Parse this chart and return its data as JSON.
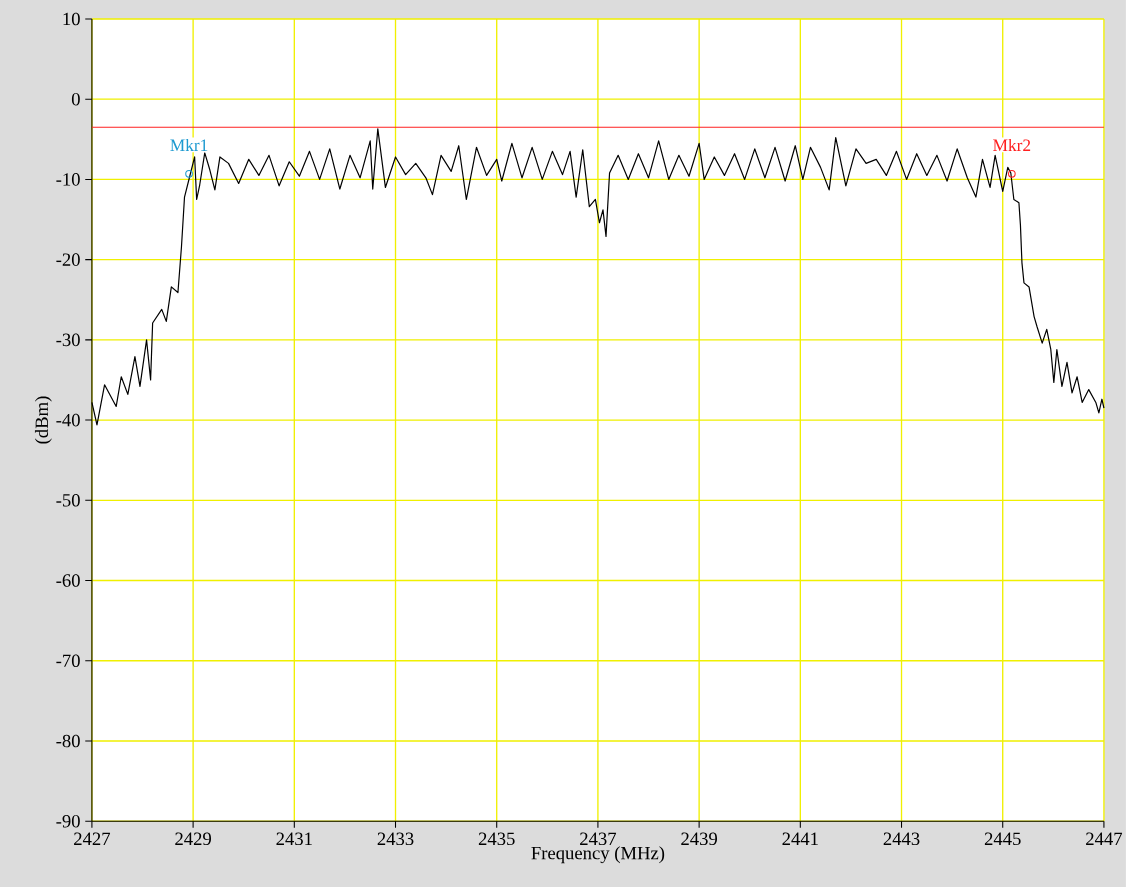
{
  "chart_data": {
    "type": "line",
    "xlabel": "Frequency (MHz)",
    "ylabel": "(dBm)",
    "xlim": [
      2427,
      2447
    ],
    "ylim": [
      -90,
      10
    ],
    "xticks": [
      2427,
      2429,
      2431,
      2433,
      2435,
      2437,
      2439,
      2441,
      2443,
      2445,
      2447
    ],
    "yticks": [
      -90,
      -80,
      -70,
      -60,
      -50,
      -40,
      -30,
      -20,
      -10,
      0,
      10
    ],
    "grid": true,
    "ref_lines": [
      {
        "axis": "y",
        "value": -3.5,
        "color": "#ff2020"
      }
    ],
    "series": [
      {
        "color": "#000000",
        "x": [
          2427.0,
          2427.1,
          2427.25,
          2427.48,
          2427.58,
          2427.71,
          2427.85,
          2427.95,
          2428.08,
          2428.16,
          2428.2,
          2428.38,
          2428.47,
          2428.57,
          2428.7,
          2428.77,
          2428.83,
          2428.95,
          2429.03,
          2429.07,
          2429.13,
          2429.23,
          2429.33,
          2429.43,
          2429.53,
          2429.7,
          2429.9,
          2430.1,
          2430.3,
          2430.5,
          2430.7,
          2430.9,
          2431.1,
          2431.3,
          2431.5,
          2431.7,
          2431.9,
          2432.1,
          2432.3,
          2432.5,
          2432.55,
          2432.65,
          2432.8,
          2433.0,
          2433.2,
          2433.4,
          2433.6,
          2433.73,
          2433.9,
          2434.1,
          2434.25,
          2434.4,
          2434.6,
          2434.8,
          2435.0,
          2435.1,
          2435.3,
          2435.5,
          2435.7,
          2435.9,
          2436.1,
          2436.3,
          2436.45,
          2436.57,
          2436.7,
          2436.83,
          2436.95,
          2437.03,
          2437.1,
          2437.16,
          2437.23,
          2437.4,
          2437.6,
          2437.8,
          2438.0,
          2438.2,
          2438.4,
          2438.6,
          2438.8,
          2439.0,
          2439.1,
          2439.3,
          2439.5,
          2439.7,
          2439.9,
          2440.1,
          2440.3,
          2440.5,
          2440.7,
          2440.9,
          2441.05,
          2441.2,
          2441.4,
          2441.57,
          2441.7,
          2441.9,
          2442.1,
          2442.3,
          2442.5,
          2442.7,
          2442.9,
          2443.1,
          2443.3,
          2443.5,
          2443.7,
          2443.9,
          2444.1,
          2444.3,
          2444.47,
          2444.6,
          2444.75,
          2444.85,
          2445.0,
          2445.1,
          2445.16,
          2445.22,
          2445.32,
          2445.35,
          2445.38,
          2445.42,
          2445.52,
          2445.62,
          2445.68,
          2445.78,
          2445.87,
          2445.95,
          2446.01,
          2446.07,
          2446.17,
          2446.27,
          2446.37,
          2446.47,
          2446.57,
          2446.7,
          2446.84,
          2446.9,
          2446.96,
          2447.0
        ],
        "values": [
          -37.8,
          -40.6,
          -35.6,
          -38.3,
          -34.6,
          -36.8,
          -32.1,
          -35.8,
          -30,
          -35,
          -27.9,
          -26.2,
          -27.7,
          -23.4,
          -24.1,
          -18.4,
          -12.2,
          -9.2,
          -7.2,
          -12.5,
          -10.7,
          -6.7,
          -8.8,
          -11.3,
          -7.2,
          -8.0,
          -10.5,
          -7.5,
          -9.5,
          -7.0,
          -10.8,
          -7.8,
          -9.6,
          -6.5,
          -10.0,
          -6.2,
          -11.2,
          -7.0,
          -9.8,
          -5.2,
          -11.2,
          -3.7,
          -11.0,
          -7.2,
          -9.4,
          -8.0,
          -9.8,
          -11.9,
          -7.0,
          -9.0,
          -5.8,
          -12.5,
          -6.0,
          -9.5,
          -7.5,
          -10.2,
          -5.5,
          -9.8,
          -6.0,
          -10.0,
          -6.5,
          -9.4,
          -6.5,
          -12.2,
          -6.3,
          -13.4,
          -12.5,
          -15.4,
          -13.8,
          -17.1,
          -9.2,
          -7.0,
          -10.0,
          -6.8,
          -9.8,
          -5.2,
          -10.0,
          -7.0,
          -9.6,
          -5.5,
          -10.0,
          -7.2,
          -9.5,
          -6.8,
          -10.0,
          -6.2,
          -9.8,
          -6.0,
          -10.2,
          -5.8,
          -10.0,
          -6.0,
          -8.5,
          -11.3,
          -4.8,
          -10.8,
          -6.2,
          -8.0,
          -7.5,
          -9.5,
          -6.5,
          -10.0,
          -6.8,
          -9.5,
          -7.0,
          -10.2,
          -6.2,
          -9.8,
          -12.2,
          -7.5,
          -11.0,
          -7.0,
          -11.5,
          -8.5,
          -9.2,
          -12.5,
          -12.9,
          -15.7,
          -20.4,
          -22.9,
          -23.4,
          -27.1,
          -28.4,
          -30.4,
          -28.7,
          -31.2,
          -35.3,
          -31.2,
          -35.8,
          -32.8,
          -36.6,
          -34.6,
          -37.8,
          -36.2,
          -37.8,
          -39.1,
          -37.4,
          -38.5
        ]
      },
      {
        "name": "Mkr1",
        "type": "scatter",
        "marker": "circle",
        "color": "#1e9ad0",
        "x": [
          2428.92
        ],
        "values": [
          -9.3
        ]
      },
      {
        "name": "Mkr2",
        "type": "scatter",
        "marker": "circle",
        "color": "#ff2020",
        "x": [
          2445.18
        ],
        "values": [
          -9.3
        ]
      }
    ]
  }
}
